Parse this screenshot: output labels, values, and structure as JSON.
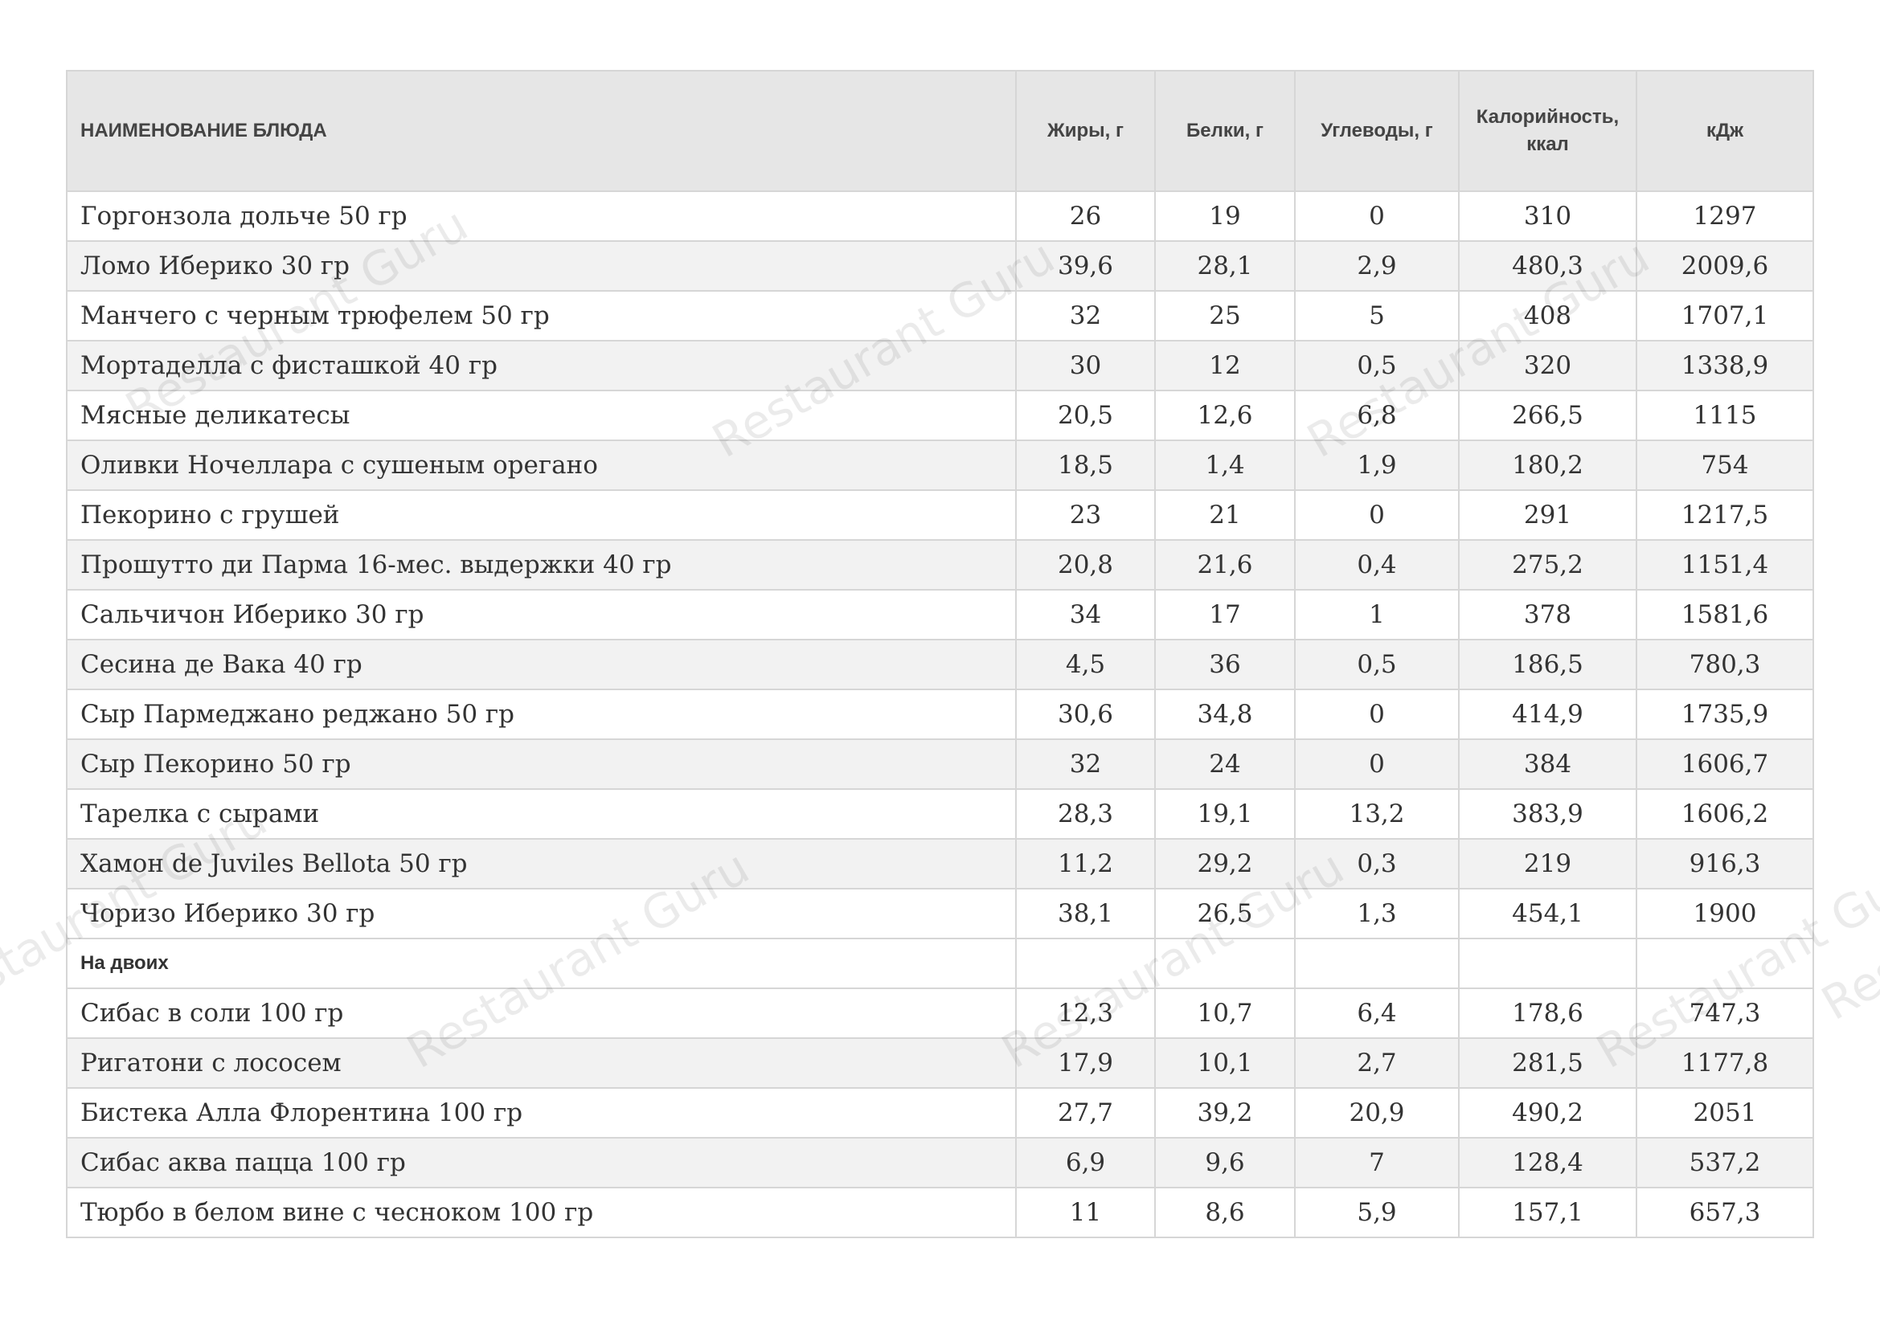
{
  "watermark": "Restaurant Guru",
  "table": {
    "header": [
      "НАИМЕНОВАНИЕ БЛЮДА",
      "Жиры, г",
      "Белки, г",
      "Углеводы, г",
      "Калорийность, ккал",
      "кДж"
    ],
    "rows": [
      [
        "Горгонзола дольче 50 гр",
        "26",
        "19",
        "0",
        "310",
        "1297"
      ],
      [
        "Ломо Иберико 30 гр",
        "39,6",
        "28,1",
        "2,9",
        "480,3",
        "2009,6"
      ],
      [
        "Манчего с черным трюфелем 50 гр",
        "32",
        "25",
        "5",
        "408",
        "1707,1"
      ],
      [
        "Мортаделла с фисташкой 40 гр",
        "30",
        "12",
        "0,5",
        "320",
        "1338,9"
      ],
      [
        "Мясные деликатесы",
        "20,5",
        "12,6",
        "6,8",
        "266,5",
        "1115"
      ],
      [
        "Оливки Ночеллара с сушеным орегано",
        "18,5",
        "1,4",
        "1,9",
        "180,2",
        "754"
      ],
      [
        "Пекорино с грушей",
        "23",
        "21",
        "0",
        "291",
        "1217,5"
      ],
      [
        "Прошутто ди Парма 16-мес. выдержки 40 гр",
        "20,8",
        "21,6",
        "0,4",
        "275,2",
        "1151,4"
      ],
      [
        "Сальчичон Иберико 30 гр",
        "34",
        "17",
        "1",
        "378",
        "1581,6"
      ],
      [
        "Сесина де Вака 40 гр",
        "4,5",
        "36",
        "0,5",
        "186,5",
        "780,3"
      ],
      [
        "Сыр Пармеджано реджано 50 гр",
        "30,6",
        "34,8",
        "0",
        "414,9",
        "1735,9"
      ],
      [
        "Сыр Пекорино 50 гр",
        "32",
        "24",
        "0",
        "384",
        "1606,7"
      ],
      [
        "Тарелка с сырами",
        "28,3",
        "19,1",
        "13,2",
        "383,9",
        "1606,2"
      ],
      [
        "Хамон de Juviles Bellota 50 гр",
        "11,2",
        "29,2",
        "0,3",
        "219",
        "916,3"
      ],
      [
        "Чоризо Иберико 30 гр",
        "38,1",
        "26,5",
        "1,3",
        "454,1",
        "1900"
      ],
      [
        "На двоих"
      ],
      [
        "Сибас в соли 100 гр",
        "12,3",
        "10,7",
        "6,4",
        "178,6",
        "747,3"
      ],
      [
        "Ригатони с лососем",
        "17,9",
        "10,1",
        "2,7",
        "281,5",
        "1177,8"
      ],
      [
        "Бистека Алла Флорентина 100 гр",
        "27,7",
        "39,2",
        "20,9",
        "490,2",
        "2051"
      ],
      [
        "Сибас аква пацца 100 гр",
        "6,9",
        "9,6",
        "7",
        "128,4",
        "537,2"
      ],
      [
        "Тюрбо в белом вине с чесноком 100 гр",
        "11",
        "8,6",
        "5,9",
        "157,1",
        "657,3"
      ]
    ]
  }
}
